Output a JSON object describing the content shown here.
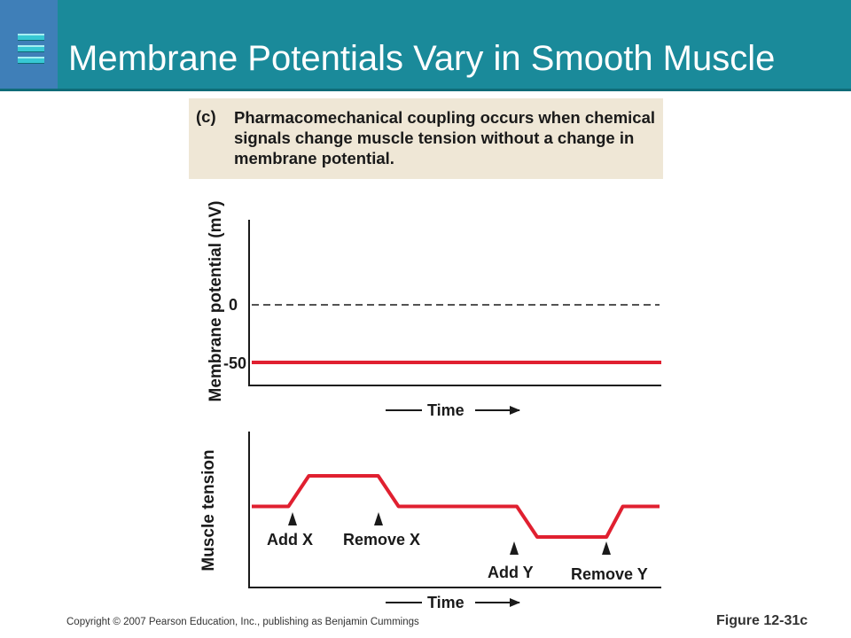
{
  "slide": {
    "title": "Membrane Potentials Vary in Smooth Muscle",
    "footer_copyright": "Copyright © 2007 Pearson Education, Inc., publishing as Benjamin Cummings",
    "figure_label": "Figure 12-31c",
    "header_icon": "list-icon",
    "colors": {
      "header": "#1a8a9a",
      "accent": "#3f7fb8",
      "trace": "#e02030",
      "caption_bg": "#efe7d6"
    }
  },
  "caption": {
    "label": "(c)",
    "term": "Pharmacomechanical coupling",
    "text": " occurs when chemical signals change muscle tension without a change in membrane potential."
  },
  "chart_data": [
    {
      "type": "line",
      "ylabel": "Membrane potential (mV)",
      "xlabel": "Time",
      "y_ticks": [
        "0",
        "-50"
      ],
      "reference_lines": [
        {
          "y": 0,
          "style": "dashed"
        }
      ],
      "series": [
        {
          "values": [
            -50,
            -50
          ]
        }
      ]
    },
    {
      "type": "line",
      "ylabel": "Muscle tension",
      "xlabel": "Time",
      "annotations": [
        "Add X",
        "Remove X",
        "Add Y",
        "Remove Y"
      ],
      "series": [
        {
          "x": [
            0,
            0.09,
            0.14,
            0.31,
            0.36,
            0.65,
            0.7,
            0.87,
            0.91,
            1.0
          ],
          "values": [
            0.5,
            0.5,
            0.85,
            0.85,
            0.5,
            0.5,
            0.15,
            0.15,
            0.5,
            0.5
          ]
        }
      ]
    }
  ]
}
